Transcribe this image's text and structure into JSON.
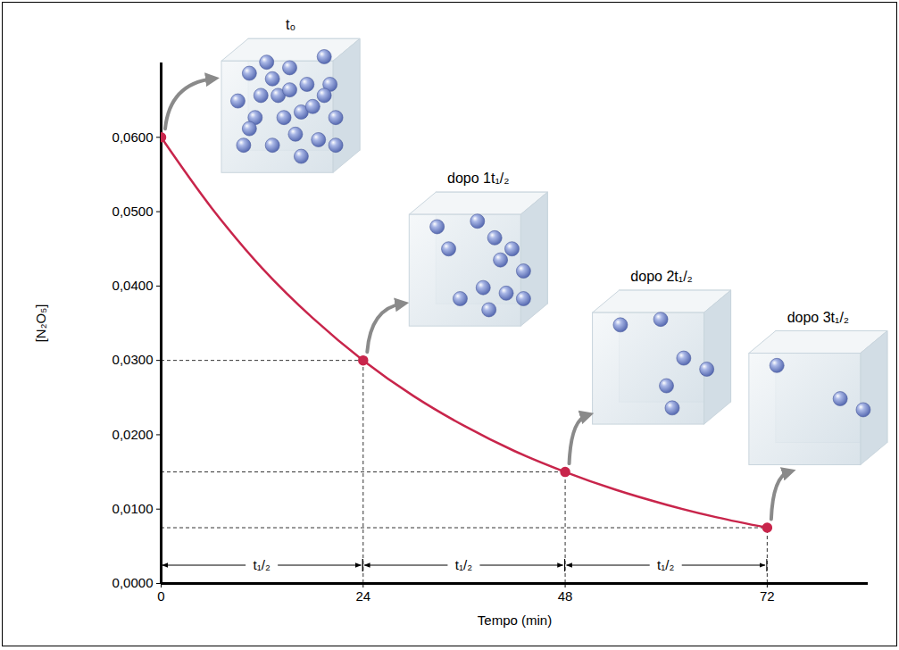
{
  "chart_data": {
    "type": "line",
    "x_label": "Tempo (min)",
    "y_label": "[N₂O₅]",
    "color": "#c8254b",
    "x": [
      0,
      6,
      12,
      18,
      24,
      30,
      36,
      42,
      48,
      54,
      60,
      66,
      72
    ],
    "values": [
      0.06,
      0.0505,
      0.0424,
      0.0357,
      0.03,
      0.0252,
      0.0212,
      0.0178,
      0.015,
      0.0126,
      0.0106,
      0.0089,
      0.0075
    ],
    "marked_points": {
      "marker": "circle",
      "x": [
        0,
        24,
        48,
        72
      ],
      "values": [
        0.06,
        0.03,
        0.015,
        0.0075
      ]
    },
    "xlim": [
      0,
      84
    ],
    "xticks": [
      0,
      24,
      48,
      72
    ],
    "ylim": [
      0,
      0.07
    ],
    "yticks": [
      {
        "value": 0,
        "label": "0,0000"
      },
      {
        "value": 0.01,
        "label": "0,0100"
      },
      {
        "value": 0.02,
        "label": "0,0200"
      },
      {
        "value": 0.03,
        "label": "0,0300"
      },
      {
        "value": 0.04,
        "label": "0,0400"
      },
      {
        "value": 0.05,
        "label": "0,0500"
      },
      {
        "value": 0.06,
        "label": "0,0600"
      }
    ],
    "grid": false,
    "half_life_label": "t₁/₂",
    "snapshots": [
      {
        "label": "t₀",
        "particles": 24
      },
      {
        "label": "dopo 1t₁/₂",
        "particles": 12
      },
      {
        "label": "dopo 2t₁/₂",
        "particles": 6
      },
      {
        "label": "dopo 3t₁/₂",
        "particles": 3
      }
    ]
  }
}
